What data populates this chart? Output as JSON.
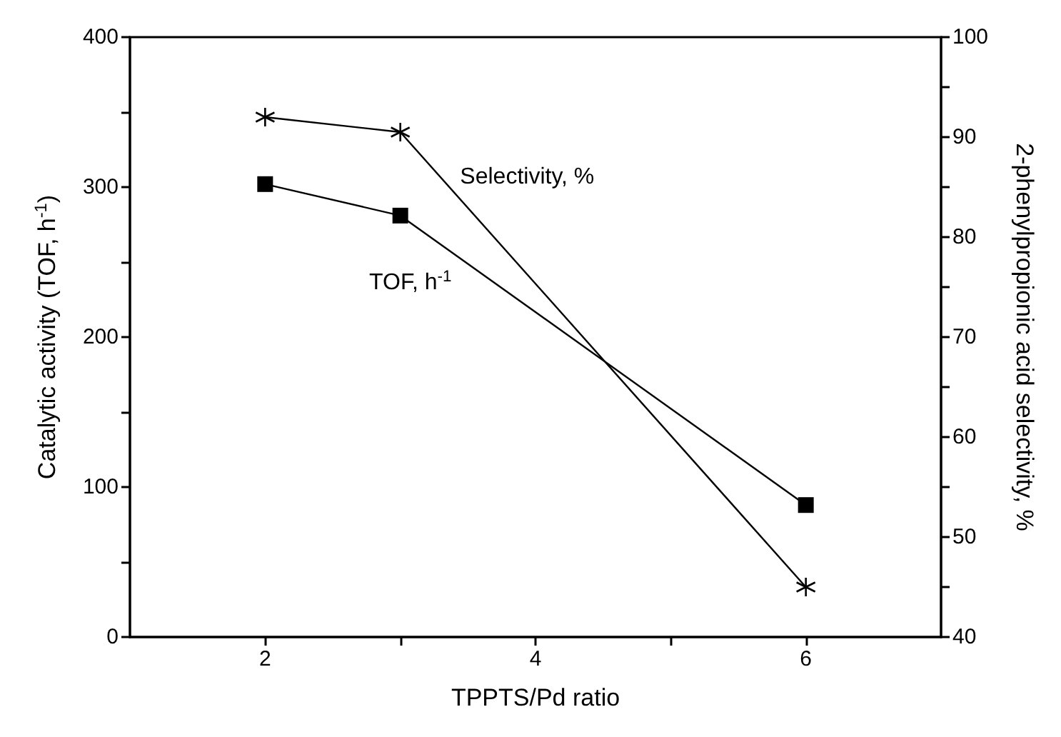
{
  "chart_data": {
    "type": "line",
    "xlabel": "TPPTS/Pd ratio",
    "ylabel": "Catalytic activity (TOF, h$^{-1}$)",
    "y2label": "2-phenylpropionic acid selectivity, %",
    "x": [
      2,
      3,
      6
    ],
    "series": [
      {
        "color": "#000000",
        "marker": "square",
        "values": [
          302,
          281,
          88
        ]
      },
      {
        "color": "#000000",
        "marker": "star",
        "axis": "y2",
        "values": [
          92,
          90.5,
          45
        ]
      }
    ],
    "xlim": [
      1,
      7
    ],
    "xticks": [
      2,
      {
        "value": 3,
        "label": null
      },
      4,
      {
        "value": 5,
        "label": null
      },
      6
    ],
    "ylim": [
      0,
      400
    ],
    "yticks": [
      0,
      {
        "value": 50,
        "label": null
      },
      100,
      {
        "value": 150,
        "label": null
      },
      200,
      {
        "value": 250,
        "label": null
      },
      300,
      {
        "value": 350,
        "label": null
      },
      400
    ],
    "y2lim": [
      40,
      100
    ],
    "y2ticks": [
      40,
      {
        "value": 45,
        "label": null
      },
      50,
      {
        "value": 55,
        "label": null
      },
      60,
      {
        "value": 65,
        "label": null
      },
      70,
      {
        "value": 75,
        "label": null
      },
      80,
      {
        "value": 85,
        "label": null
      },
      90,
      {
        "value": 95,
        "label": null
      },
      100
    ],
    "annotations": [
      "Selectivity, %",
      "TOF, h$^{-1}$"
    ],
    "grid": false,
    "line_style": "solid"
  }
}
